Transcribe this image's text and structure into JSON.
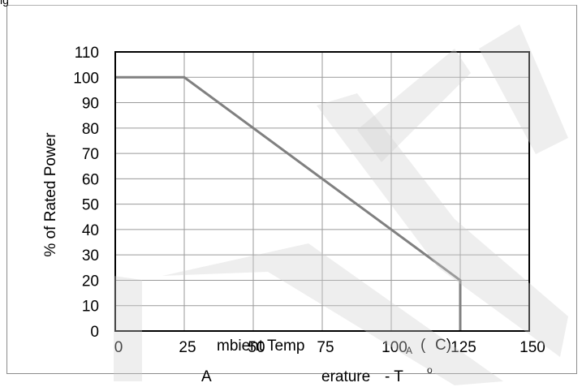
{
  "header": {
    "text": "ig"
  },
  "chart_data": {
    "type": "line",
    "title": "",
    "xlabel": "mbient Temp erature - T A ( C)",
    "ylabel": "% of Rated Power",
    "xlim": [
      0,
      150
    ],
    "ylim": [
      0,
      110
    ],
    "x_ticks": [
      "0",
      "25",
      "50",
      "75",
      "100",
      "125",
      "150"
    ],
    "y_ticks": [
      "0",
      "10",
      "20",
      "30",
      "40",
      "50",
      "60",
      "70",
      "80",
      "90",
      "100",
      "110"
    ],
    "grid": true,
    "series": [
      {
        "x": [
          0,
          25,
          125,
          125
        ],
        "y": [
          100,
          100,
          20,
          0
        ],
        "color": "#808080"
      }
    ],
    "label_fragments": {
      "mbient": "mbient Temp",
      "a_letter": "A",
      "erature": "erature",
      "dash": "- T",
      "subscript_a": "A",
      "open_paren": "(",
      "close_paren": "C)",
      "degree": "o"
    }
  }
}
